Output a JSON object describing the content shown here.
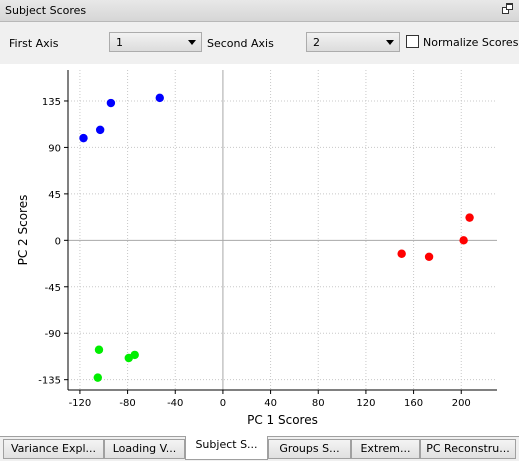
{
  "panel": {
    "title": "Subject Scores"
  },
  "controls": {
    "first_axis_label": "First Axis",
    "first_axis_value": "1",
    "second_axis_label": "Second Axis",
    "second_axis_value": "2",
    "normalize_label": "Normalize Scores",
    "normalize_checked": false
  },
  "chart_data": {
    "type": "scatter",
    "xlabel": "PC 1 Scores",
    "ylabel": "PC 2 Scores",
    "xlim": [
      -130,
      230
    ],
    "ylim": [
      -145,
      165
    ],
    "xticks": [
      -120,
      -80,
      -40,
      0,
      40,
      80,
      120,
      160,
      200
    ],
    "yticks": [
      -135,
      -90,
      -45,
      0,
      45,
      90,
      135
    ],
    "grid": true,
    "series": [
      {
        "color": "#0000ff",
        "points": [
          [
            -117,
            99
          ],
          [
            -103,
            107
          ],
          [
            -94,
            133
          ],
          [
            -53,
            138
          ]
        ]
      },
      {
        "color": "#ff0000",
        "points": [
          [
            150,
            -13
          ],
          [
            173,
            -16
          ],
          [
            202,
            0
          ],
          [
            207,
            22
          ]
        ]
      },
      {
        "color": "#00ee00",
        "points": [
          [
            -104,
            -106
          ],
          [
            -79,
            -114
          ],
          [
            -74,
            -111
          ],
          [
            -105,
            -133
          ]
        ]
      }
    ]
  },
  "tabs": [
    {
      "label": "Variance Expl...",
      "active": false
    },
    {
      "label": "Loading V...",
      "active": false
    },
    {
      "label": "Subject S...",
      "active": true
    },
    {
      "label": "Groups S...",
      "active": false
    },
    {
      "label": "Extrem...",
      "active": false
    },
    {
      "label": "PC Reconstru...",
      "active": false
    }
  ]
}
